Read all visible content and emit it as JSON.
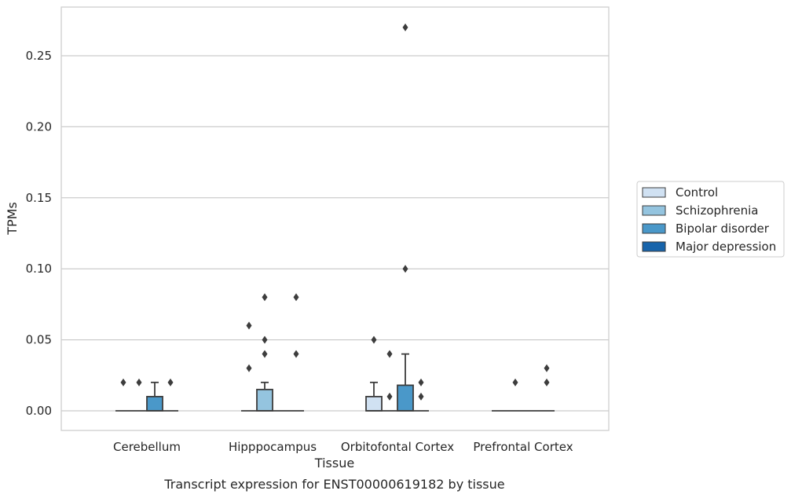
{
  "chart_data": {
    "type": "box",
    "title": "",
    "caption": "Transcript expression for ENST00000619182 by tissue",
    "xlabel": "Tissue",
    "ylabel": "TPMs",
    "ylim": [
      -0.013,
      0.284
    ],
    "yticks": [
      0.0,
      0.05,
      0.1,
      0.15,
      0.2,
      0.25
    ],
    "ytick_labels": [
      "0.00",
      "0.05",
      "0.10",
      "0.15",
      "0.20",
      "0.25"
    ],
    "grid": "y",
    "legend_position": "right",
    "categories": [
      "Cerebellum",
      "Hipppocampus",
      "Orbitofontal Cortex",
      "Prefrontal Cortex"
    ],
    "series": [
      {
        "name": "Control",
        "color": "#d0e1f2",
        "boxes": [
          {
            "q1": 0,
            "median": 0,
            "q3": 0,
            "whisker_low": 0,
            "whisker_high": 0,
            "outliers": [
              0.02
            ]
          },
          {
            "q1": 0,
            "median": 0,
            "q3": 0,
            "whisker_low": 0,
            "whisker_high": 0,
            "outliers": [
              0.03,
              0.06
            ]
          },
          {
            "q1": 0,
            "median": 0,
            "q3": 0.01,
            "whisker_low": 0,
            "whisker_high": 0.02,
            "outliers": [
              0.05
            ]
          },
          {
            "q1": 0,
            "median": 0,
            "q3": 0,
            "whisker_low": 0,
            "whisker_high": 0,
            "outliers": []
          }
        ]
      },
      {
        "name": "Schizophrenia",
        "color": "#94c4df",
        "boxes": [
          {
            "q1": 0,
            "median": 0,
            "q3": 0,
            "whisker_low": 0,
            "whisker_high": 0,
            "outliers": [
              0.02
            ]
          },
          {
            "q1": 0,
            "median": 0,
            "q3": 0.015,
            "whisker_low": 0,
            "whisker_high": 0.02,
            "outliers": [
              0.04,
              0.05,
              0.08
            ]
          },
          {
            "q1": 0,
            "median": 0,
            "q3": 0,
            "whisker_low": 0,
            "whisker_high": 0,
            "outliers": [
              0.01,
              0.04
            ]
          },
          {
            "q1": 0,
            "median": 0,
            "q3": 0,
            "whisker_low": 0,
            "whisker_high": 0,
            "outliers": [
              0.02
            ]
          }
        ]
      },
      {
        "name": "Bipolar disorder",
        "color": "#4a98c9",
        "boxes": [
          {
            "q1": 0,
            "median": 0,
            "q3": 0.01,
            "whisker_low": 0,
            "whisker_high": 0.02,
            "outliers": []
          },
          {
            "q1": 0,
            "median": 0,
            "q3": 0,
            "whisker_low": 0,
            "whisker_high": 0,
            "outliers": []
          },
          {
            "q1": 0,
            "median": 0,
            "q3": 0.018,
            "whisker_low": 0,
            "whisker_high": 0.04,
            "outliers": [
              0.1,
              0.27
            ]
          },
          {
            "q1": 0,
            "median": 0,
            "q3": 0,
            "whisker_low": 0,
            "whisker_high": 0,
            "outliers": []
          }
        ]
      },
      {
        "name": "Major depression",
        "color": "#1764ab",
        "boxes": [
          {
            "q1": 0,
            "median": 0,
            "q3": 0,
            "whisker_low": 0,
            "whisker_high": 0,
            "outliers": [
              0.02
            ]
          },
          {
            "q1": 0,
            "median": 0,
            "q3": 0,
            "whisker_low": 0,
            "whisker_high": 0,
            "outliers": [
              0.04,
              0.08
            ]
          },
          {
            "q1": 0,
            "median": 0,
            "q3": 0,
            "whisker_low": 0,
            "whisker_high": 0,
            "outliers": [
              0.01,
              0.02
            ]
          },
          {
            "q1": 0,
            "median": 0,
            "q3": 0,
            "whisker_low": 0,
            "whisker_high": 0,
            "outliers": [
              0.02,
              0.03
            ]
          }
        ]
      }
    ]
  }
}
